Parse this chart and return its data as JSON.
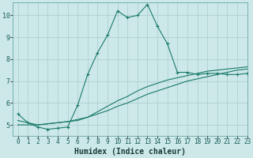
{
  "xlabel": "Humidex (Indice chaleur)",
  "ylabel": "",
  "background_color": "#cce8e8",
  "grid_color": "#aacccc",
  "line_color": "#1a7a6a",
  "xlim": [
    -0.5,
    23
  ],
  "ylim": [
    4.5,
    10.6
  ],
  "xticks": [
    0,
    1,
    2,
    3,
    4,
    5,
    6,
    7,
    8,
    9,
    10,
    11,
    12,
    13,
    14,
    15,
    16,
    17,
    18,
    19,
    20,
    21,
    22,
    23
  ],
  "yticks": [
    5,
    6,
    7,
    8,
    9,
    10
  ],
  "series1_x": [
    0,
    1,
    2,
    3,
    4,
    5,
    6,
    7,
    8,
    9,
    10,
    11,
    12,
    13,
    14,
    15,
    16,
    17,
    18,
    19,
    20,
    21,
    22,
    23
  ],
  "series1_y": [
    5.5,
    5.1,
    4.9,
    4.8,
    4.85,
    4.9,
    5.9,
    7.3,
    8.3,
    9.1,
    10.2,
    9.9,
    10.0,
    10.5,
    9.5,
    8.7,
    7.4,
    7.4,
    7.3,
    7.35,
    7.35,
    7.3,
    7.3,
    7.35
  ],
  "series2_x": [
    0,
    1,
    2,
    3,
    4,
    5,
    6,
    7,
    8,
    9,
    10,
    11,
    12,
    13,
    14,
    15,
    16,
    17,
    18,
    19,
    20,
    21,
    22,
    23
  ],
  "series2_y": [
    5.0,
    5.0,
    5.0,
    5.05,
    5.1,
    5.15,
    5.25,
    5.35,
    5.5,
    5.65,
    5.85,
    6.0,
    6.2,
    6.4,
    6.55,
    6.7,
    6.85,
    7.0,
    7.1,
    7.2,
    7.3,
    7.4,
    7.5,
    7.55
  ],
  "series3_x": [
    0,
    1,
    2,
    3,
    4,
    5,
    6,
    7,
    8,
    9,
    10,
    11,
    12,
    13,
    14,
    15,
    16,
    17,
    18,
    19,
    20,
    21,
    22,
    23
  ],
  "series3_y": [
    5.2,
    5.1,
    5.0,
    5.05,
    5.1,
    5.15,
    5.2,
    5.35,
    5.6,
    5.85,
    6.1,
    6.3,
    6.55,
    6.75,
    6.9,
    7.05,
    7.15,
    7.25,
    7.35,
    7.45,
    7.5,
    7.55,
    7.6,
    7.65
  ],
  "xlabel_fontsize": 7,
  "tick_fontsize": 5.5,
  "tick_color": "#1a5a5a",
  "xlabel_color": "#1a3a3a"
}
